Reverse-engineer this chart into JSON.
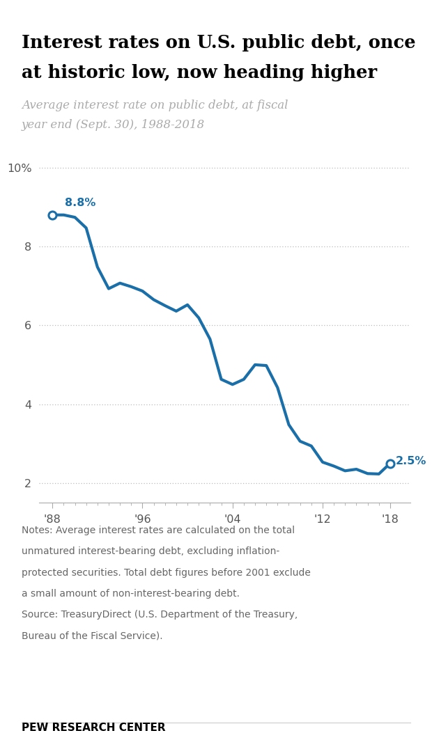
{
  "title_line1": "Interest rates on U.S. public debt, once",
  "title_line2": "at historic low, now heading higher",
  "subtitle_line1": "Average interest rate on public debt, at fiscal",
  "subtitle_line2": "year end (Sept. 30), 1988-2018",
  "years": [
    1988,
    1989,
    1990,
    1991,
    1992,
    1993,
    1994,
    1995,
    1996,
    1997,
    1998,
    1999,
    2000,
    2001,
    2002,
    2003,
    2004,
    2005,
    2006,
    2007,
    2008,
    2009,
    2010,
    2011,
    2012,
    2013,
    2014,
    2015,
    2016,
    2017,
    2018
  ],
  "values": [
    8.8,
    8.8,
    8.74,
    8.47,
    7.48,
    6.93,
    7.07,
    6.98,
    6.87,
    6.65,
    6.5,
    6.36,
    6.52,
    6.19,
    5.65,
    4.63,
    4.5,
    4.63,
    5.0,
    4.98,
    4.42,
    3.48,
    3.06,
    2.94,
    2.53,
    2.43,
    2.31,
    2.35,
    2.24,
    2.23,
    2.5
  ],
  "line_color": "#1b6fa8",
  "line_width": 3.0,
  "marker_color": "white",
  "marker_edge_color": "#1b6fa8",
  "marker_size": 8,
  "annotation_color": "#1b6fa8",
  "yticks": [
    2,
    4,
    6,
    8,
    10
  ],
  "ytick_labels": [
    "2",
    "4",
    "6",
    "8",
    "10%"
  ],
  "ylim": [
    1.5,
    10.8
  ],
  "xtick_positions": [
    1988,
    1996,
    2004,
    2012,
    2018
  ],
  "xtick_labels": [
    "'88",
    "'96",
    "'04",
    "'12",
    "'18"
  ],
  "grid_color": "#bbbbbb",
  "bg_color": "#ffffff",
  "notes_text": "Notes: Average interest rates are calculated on the total\nunmatured interest-bearing debt, excluding inflation-\nprotected securities. Total debt figures before 2001 exclude\na small amount of non-interest-bearing debt.\nSource: TreasuryDirect (U.S. Department of the Treasury,\nBureau of the Fiscal Service).",
  "source_label": "PEW RESEARCH CENTER",
  "title_color": "#000000",
  "subtitle_color": "#aaaaaa",
  "notes_color": "#666666",
  "source_color": "#000000",
  "top_bar_color": "#cc4400",
  "top_bar_height": 0.004
}
